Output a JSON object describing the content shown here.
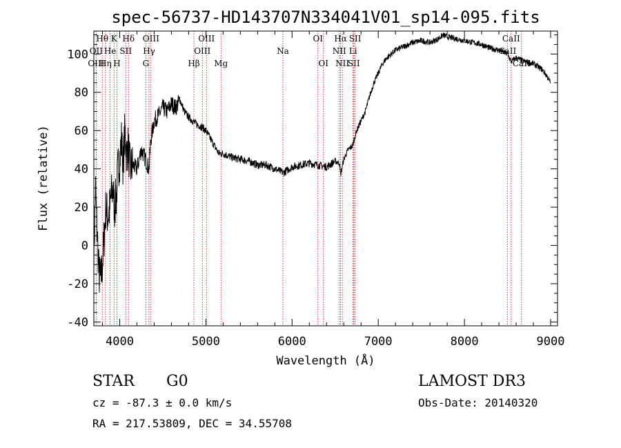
{
  "chart_data": {
    "type": "line",
    "title": "spec-56737-HD143707N334041V01_sp14-095.fits",
    "xlabel": "Wavelength (Å)",
    "ylabel": "Flux (relative)",
    "xlim": [
      3700,
      9080
    ],
    "ylim": [
      -42,
      112
    ],
    "xticks": [
      4000,
      5000,
      6000,
      7000,
      8000,
      9000
    ],
    "yticks": [
      -40,
      -20,
      0,
      20,
      40,
      60,
      80,
      100
    ],
    "grid": false,
    "series": [
      {
        "x": [
          3700,
          3720,
          3740,
          3760,
          3780,
          3800,
          3820,
          3840,
          3860,
          3880,
          3900,
          3920,
          3940,
          3960,
          3980,
          4000,
          4020,
          4040,
          4060,
          4080,
          4100,
          4120,
          4150,
          4200,
          4250,
          4300,
          4340,
          4360,
          4400,
          4450,
          4500,
          4550,
          4600,
          4650,
          4700,
          4750,
          4800,
          4850,
          4900,
          4950,
          5000,
          5050,
          5100,
          5150,
          5200,
          5300,
          5400,
          5500,
          5600,
          5700,
          5800,
          5900,
          6000,
          6100,
          6200,
          6300,
          6400,
          6500,
          6550,
          6563,
          6600,
          6650,
          6700,
          6750,
          6800,
          6850,
          6900,
          6950,
          7000,
          7050,
          7100,
          7150,
          7200,
          7300,
          7400,
          7500,
          7600,
          7700,
          7750,
          7800,
          7900,
          8000,
          8100,
          8200,
          8300,
          8400,
          8500,
          8542,
          8600,
          8700,
          8800,
          8900,
          8950,
          9000
        ],
        "values": [
          -5,
          30,
          5,
          -15,
          -18,
          -10,
          5,
          20,
          15,
          18,
          25,
          30,
          20,
          25,
          40,
          45,
          55,
          42,
          60,
          48,
          52,
          40,
          42,
          40,
          50,
          45,
          40,
          55,
          65,
          68,
          72,
          70,
          74,
          72,
          76,
          70,
          67,
          65,
          63,
          62,
          60,
          56,
          52,
          48,
          48,
          46,
          45,
          44,
          42,
          42,
          40,
          38,
          41,
          42,
          43,
          42,
          41,
          44,
          43,
          37,
          45,
          50,
          52,
          60,
          65,
          70,
          78,
          85,
          90,
          95,
          98,
          100,
          102,
          104,
          106,
          107,
          106,
          108,
          110,
          109,
          108,
          107,
          106,
          105,
          103,
          102,
          100,
          96,
          98,
          96,
          95,
          92,
          89,
          85
        ]
      }
    ],
    "line_labels": [
      {
        "text": "Hθ",
        "wavelength": 3798,
        "row": 1
      },
      {
        "text": "K",
        "wavelength": 3934,
        "row": 1
      },
      {
        "text": "Hδ",
        "wavelength": 4102,
        "row": 1
      },
      {
        "text": "OIII",
        "wavelength": 4363,
        "row": 1
      },
      {
        "text": "OIII",
        "wavelength": 5007,
        "row": 1
      },
      {
        "text": "OI",
        "wavelength": 6300,
        "row": 1
      },
      {
        "text": "Hα",
        "wavelength": 6563,
        "row": 1
      },
      {
        "text": "SII",
        "wavelength": 6731,
        "row": 1
      },
      {
        "text": "CaII",
        "wavelength": 8542,
        "row": 1
      },
      {
        "text": "OII",
        "wavelength": 3727,
        "row": 2
      },
      {
        "text": "He",
        "wavelength": 3889,
        "row": 2
      },
      {
        "text": "SII",
        "wavelength": 4070,
        "row": 2
      },
      {
        "text": "Hγ",
        "wavelength": 4340,
        "row": 2
      },
      {
        "text": "OIII",
        "wavelength": 4959,
        "row": 2
      },
      {
        "text": "Na",
        "wavelength": 5893,
        "row": 2
      },
      {
        "text": "NII",
        "wavelength": 6548,
        "row": 2
      },
      {
        "text": "Li",
        "wavelength": 6708,
        "row": 2
      },
      {
        "text": "CaII",
        "wavelength": 8498,
        "row": 2
      },
      {
        "text": "OIII",
        "wavelength": 3727,
        "row": 3
      },
      {
        "text": "Hη",
        "wavelength": 3835,
        "row": 3
      },
      {
        "text": "H",
        "wavelength": 3968,
        "row": 3
      },
      {
        "text": "G",
        "wavelength": 4304,
        "row": 3
      },
      {
        "text": "Hβ",
        "wavelength": 4861,
        "row": 3
      },
      {
        "text": "Mg",
        "wavelength": 5175,
        "row": 3
      },
      {
        "text": "OI",
        "wavelength": 6364,
        "row": 3
      },
      {
        "text": "NII",
        "wavelength": 6583,
        "row": 3
      },
      {
        "text": "SII",
        "wavelength": 6716,
        "row": 3
      },
      {
        "text": "CaII",
        "wavelength": 8662,
        "row": 3
      }
    ],
    "line_markers": [
      3727,
      3798,
      3835,
      3889,
      3934,
      3968,
      4070,
      4102,
      4304,
      4340,
      4363,
      4861,
      4959,
      5007,
      5175,
      5893,
      6300,
      6364,
      6548,
      6563,
      6583,
      6708,
      6716,
      6731,
      8498,
      8542,
      8662
    ]
  },
  "info": {
    "class_label": "STAR",
    "subclass_label": "G0",
    "survey_label": "LAMOST DR3",
    "cz_text": "cz = -87.3 ± 0.0 km/s",
    "obsdate_text": "Obs-Date: 20140320",
    "radec_text": "RA = 217.53809, DEC =  34.55708"
  },
  "colors": {
    "spectrum": "#000000",
    "line_markers": "#cc0000",
    "axes": "#000000"
  }
}
